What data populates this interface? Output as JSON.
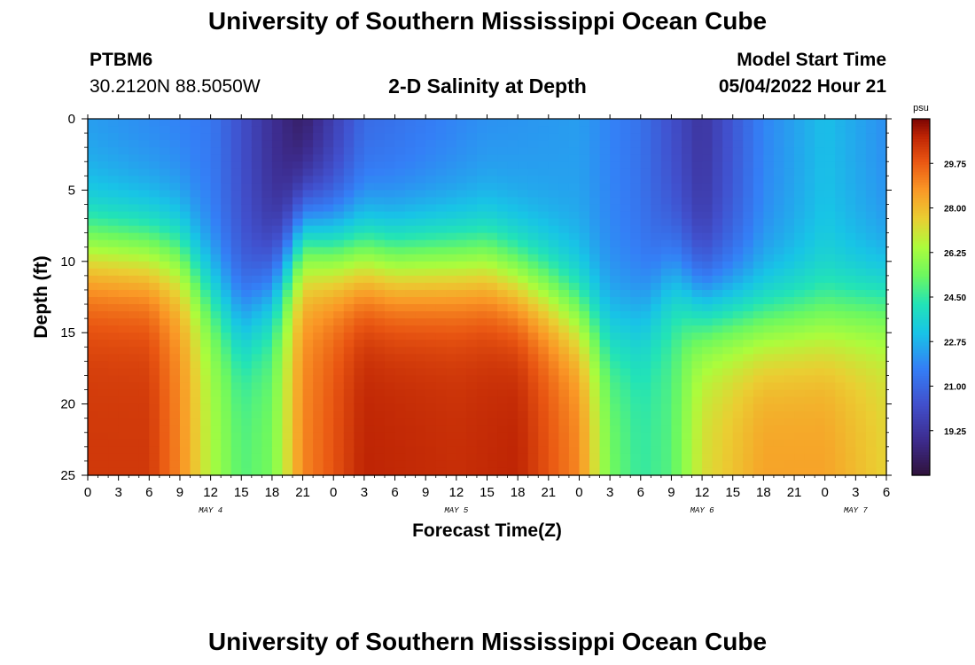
{
  "header": {
    "title": "University of Southern Mississippi Ocean Cube",
    "station": "PTBM6",
    "coords": "30.2120N  88.5050W",
    "chart_title": "2-D Salinity at Depth",
    "model_label": "Model Start Time",
    "model_time": "05/04/2022 Hour 21"
  },
  "footer": {
    "title": "University of Southern Mississippi Ocean Cube"
  },
  "chart_data": {
    "type": "heatmap",
    "title": "2-D Salinity at Depth",
    "xlabel": "Forecast Time(Z)",
    "ylabel": "Depth (ft)",
    "x_ticks": [
      "0",
      "3",
      "6",
      "9",
      "12",
      "15",
      "18",
      "21",
      "0",
      "3",
      "6",
      "9",
      "12",
      "15",
      "18",
      "21",
      "0",
      "3",
      "6",
      "9",
      "12",
      "15",
      "18",
      "21",
      "0",
      "3",
      "6"
    ],
    "x_range_hours": [
      0,
      78
    ],
    "date_labels": [
      {
        "label": "MAY 4",
        "hour": 12
      },
      {
        "label": "MAY 5",
        "hour": 36
      },
      {
        "label": "MAY 6",
        "hour": 60
      },
      {
        "label": "MAY 7",
        "hour": 75
      }
    ],
    "y_ticks": [
      0,
      5,
      10,
      15,
      20,
      25
    ],
    "y_range_ft": [
      0,
      25
    ],
    "y_reversed": true,
    "colorbar": {
      "unit": "psu",
      "min": 17.5,
      "max": 31.5,
      "tick_values": [
        19.25,
        21.0,
        22.75,
        24.5,
        26.25,
        28.0,
        29.75
      ],
      "tick_labels": [
        "19.25",
        "21.00",
        "22.75",
        "24.50",
        "26.25",
        "28.00",
        "29.75"
      ]
    },
    "description": "Salinity (psu) vs forecast hour (0-78) and depth (0-25 ft)",
    "surface_salinity": [
      {
        "hour": 0,
        "psu": 22.2
      },
      {
        "hour": 12,
        "psu": 21.5
      },
      {
        "hour": 18,
        "psu": 19.0
      },
      {
        "hour": 21,
        "psu": 18.0
      },
      {
        "hour": 27,
        "psu": 21.0
      },
      {
        "hour": 39,
        "psu": 22.0
      },
      {
        "hour": 48,
        "psu": 22.3
      },
      {
        "hour": 54,
        "psu": 21.3
      },
      {
        "hour": 60,
        "psu": 19.2
      },
      {
        "hour": 66,
        "psu": 21.8
      },
      {
        "hour": 72,
        "psu": 23.0
      },
      {
        "hour": 78,
        "psu": 22.0
      }
    ],
    "bottom_salinity": [
      {
        "hour": 0,
        "psu": 30.4
      },
      {
        "hour": 6,
        "psu": 30.4
      },
      {
        "hour": 9,
        "psu": 29.0
      },
      {
        "hour": 12,
        "psu": 26.5
      },
      {
        "hour": 15,
        "psu": 25.0
      },
      {
        "hour": 18,
        "psu": 25.5
      },
      {
        "hour": 21,
        "psu": 29.0
      },
      {
        "hour": 27,
        "psu": 30.8
      },
      {
        "hour": 36,
        "psu": 30.6
      },
      {
        "hour": 42,
        "psu": 30.8
      },
      {
        "hour": 48,
        "psu": 29.0
      },
      {
        "hour": 51,
        "psu": 25.5
      },
      {
        "hour": 54,
        "psu": 24.5
      },
      {
        "hour": 57,
        "psu": 25.0
      },
      {
        "hour": 60,
        "psu": 27.2
      },
      {
        "hour": 66,
        "psu": 28.5
      },
      {
        "hour": 72,
        "psu": 28.5
      },
      {
        "hour": 78,
        "psu": 27.5
      }
    ]
  }
}
